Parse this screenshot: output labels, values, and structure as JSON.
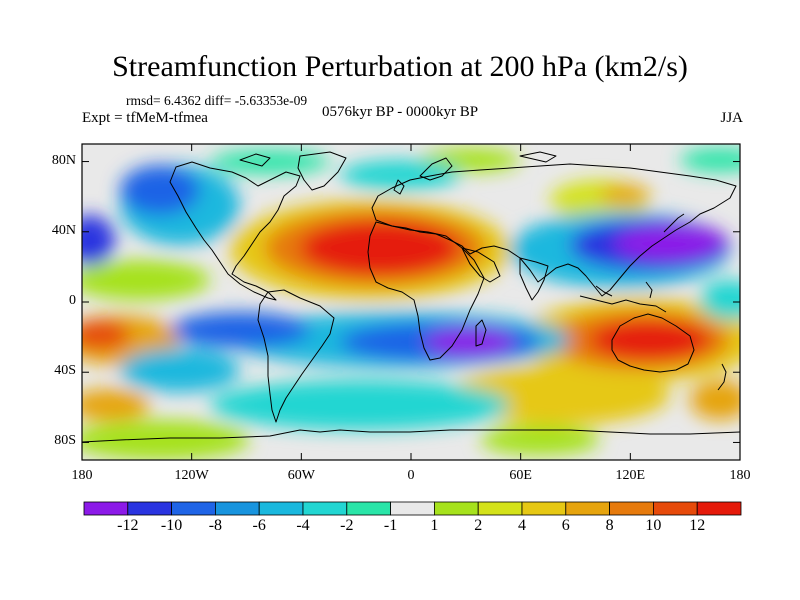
{
  "title": "Streamfunction Perturbation at 200 hPa (km2/s)",
  "stats_line": "rmsd= 6.4362 diff= -5.63353e-09",
  "left_label": "Expt = tfMeM-tfmea",
  "center_label": "0576kyr BP - 0000kyr BP",
  "right_label": "JJA",
  "map": {
    "lon_range": [
      -180,
      180
    ],
    "lat_range": [
      -90,
      90
    ],
    "projection": "cylindrical-equidistant",
    "x_ticks": [
      {
        "value": -180,
        "label": "180"
      },
      {
        "value": -120,
        "label": "120W"
      },
      {
        "value": -60,
        "label": "60W"
      },
      {
        "value": 0,
        "label": "0"
      },
      {
        "value": 60,
        "label": "60E"
      },
      {
        "value": 120,
        "label": "120E"
      },
      {
        "value": 180,
        "label": "180"
      }
    ],
    "y_ticks": [
      {
        "value": 80,
        "label": "80N"
      },
      {
        "value": 40,
        "label": "40N"
      },
      {
        "value": 0,
        "label": "0"
      },
      {
        "value": -40,
        "label": "40S"
      },
      {
        "value": -80,
        "label": "80S"
      }
    ]
  },
  "colorbar": {
    "colors": [
      "#8c1ae8",
      "#2a34e0",
      "#1f64e6",
      "#1894de",
      "#1ab8de",
      "#22d6d2",
      "#2ae5a8",
      "#e9e9e9",
      "#a6e21c",
      "#d4e21a",
      "#e6c814",
      "#e6a40e",
      "#e67a0c",
      "#e64a0a",
      "#e51a0a"
    ],
    "labels": [
      "-12",
      "-10",
      "-8",
      "-6",
      "-4",
      "-2",
      "-1",
      "1",
      "2",
      "4",
      "6",
      "8",
      "10",
      "12"
    ]
  }
}
